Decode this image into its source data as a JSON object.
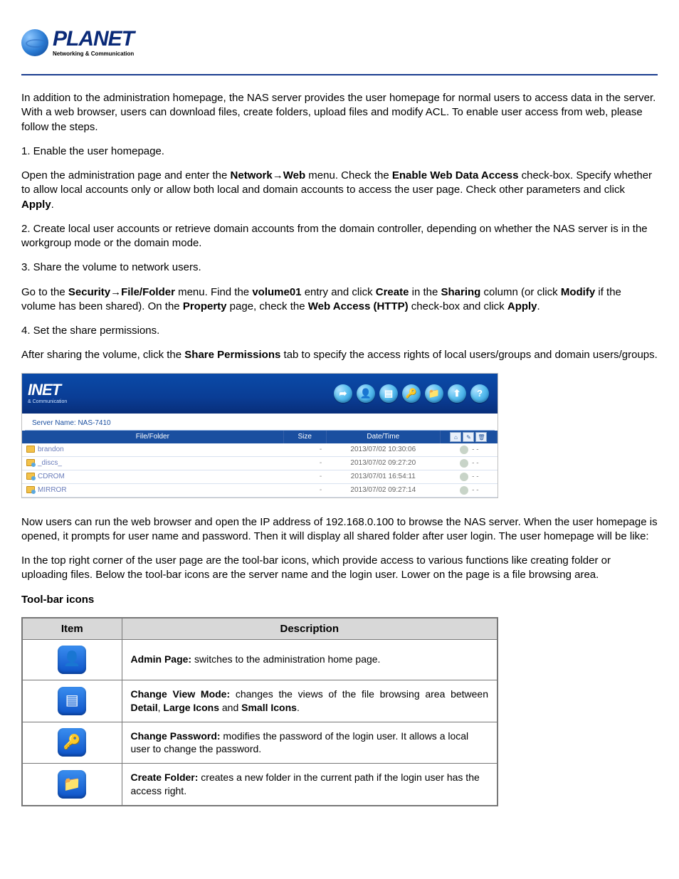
{
  "logo": {
    "word": "PLANET",
    "tagline": "Networking & Communication"
  },
  "intro": "In addition to the administration homepage, the NAS server provides the user homepage for normal users to access data in the server. With a web browser, users can download files, create folders, upload files and modify ACL. To enable user access from web, please follow the steps.",
  "step1_title": "1. Enable the user homepage.",
  "step1_a": "Open the administration page and enter the ",
  "step1_b": "Network",
  "step1_c": "Web",
  "step1_d": " menu. Check the ",
  "step1_e": "Enable Web Data Access",
  "step1_f": " check-box. Specify whether to allow local accounts only or allow both local and domain accounts to access the user page. Check other parameters and click ",
  "step1_g": "Apply",
  "step1_h": ".",
  "step2": "2. Create local user accounts or retrieve domain accounts from the domain controller, depending on whether the NAS server is in the workgroup mode or the domain mode.",
  "step3": "3. Share the volume to network users.",
  "step3_a": "Go to the ",
  "step3_b": "Security",
  "step3_c": "File/Folder",
  "step3_d": " menu. Find the ",
  "step3_e": "volume01",
  "step3_f": " entry and click ",
  "step3_g": "Create",
  "step3_h": " in the ",
  "step3_i": "Sharing",
  "step3_j": " column (or click ",
  "step3_k": "Modify",
  "step3_l": " if the volume has been shared). On the ",
  "step3_m": "Property",
  "step3_n": " page, check the ",
  "step3_o": "Web Access (HTTP)",
  "step3_p": " check-box and click ",
  "step3_q": "Apply",
  "step3_r": ".",
  "step4": "4. Set the share permissions.",
  "step4_a": "After sharing the volume, click the ",
  "step4_b": "Share Permissions",
  "step4_c": " tab to specify the access rights of local users/groups and domain users/groups.",
  "screenshot": {
    "brand_word": "INET",
    "brand_tag": "& Communication",
    "server_label": "Server Name: NAS-7410",
    "columns": {
      "c1": "File/Folder",
      "c2": "Size",
      "c3": "Date/Time"
    },
    "rows": [
      {
        "name": "brandon",
        "size": "-",
        "dt": "2013/07/02 10:30:06",
        "shared": false
      },
      {
        "name": "_discs_",
        "size": "-",
        "dt": "2013/07/02 09:27:20",
        "shared": true
      },
      {
        "name": "CDROM",
        "size": "-",
        "dt": "2013/07/01 16:54:11",
        "shared": true
      },
      {
        "name": "MIRROR",
        "size": "-",
        "dt": "2013/07/02 09:27:14",
        "shared": true
      }
    ],
    "toolbar_glyphs": [
      "➦",
      "👤",
      "▤",
      "🔑",
      "📁",
      "⬆",
      "?"
    ],
    "hdr_icons": [
      "⌂",
      "✎",
      "🗑"
    ]
  },
  "after1": "Now users can run the web browser and open the IP address of 192.168.0.100 to browse the NAS server. When the user homepage is opened, it prompts for user name and password. Then it will display all shared folder after user login. The user homepage will be like:",
  "after2": "In the top right corner of the user page are the tool-bar icons, which provide access to various functions like creating folder or uploading files. Below the tool-bar icons are the server name and the login user. Lower on the page is a file browsing area.",
  "toolbar_heading": "Tool-bar icons",
  "tbl": {
    "h1": "Item",
    "h2": "Description",
    "rows": [
      {
        "icon": "👤",
        "title": "Admin Page:",
        "desc": " switches to the administration home page."
      },
      {
        "icon": "▤",
        "title": "Change View Mode:",
        "desc_a": " changes the views of the file browsing area between ",
        "desc_b": "Detail",
        "desc_c": ", ",
        "desc_d": "Large Icons",
        "desc_e": " and ",
        "desc_f": "Small Icons",
        "desc_g": "."
      },
      {
        "icon": "🔑",
        "title": "Change Password:",
        "desc": " modifies the password of the login user. It allows a local user to change the password."
      },
      {
        "icon": "📁",
        "title": "Create Folder:",
        "desc": " creates a new folder in the current path if the login user has the access right."
      }
    ]
  }
}
